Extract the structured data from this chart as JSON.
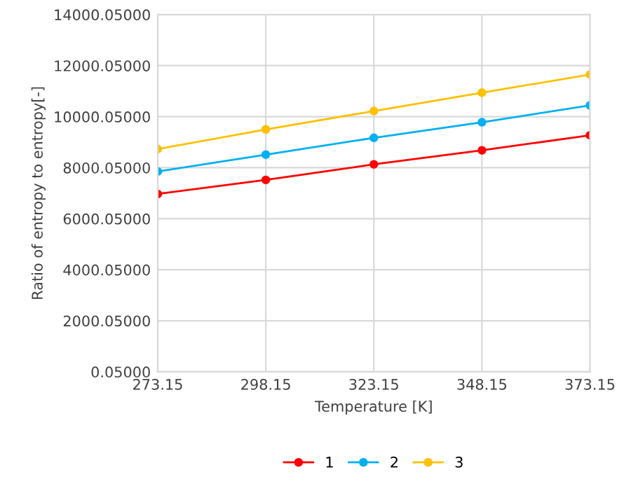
{
  "chart_data": {
    "type": "line",
    "xlabel": "Temperature [K]",
    "ylabel": "Ratio of entropy to entropy[-]",
    "x": [
      273.15,
      298.15,
      323.15,
      348.15,
      373.15
    ],
    "series": [
      {
        "name": "1",
        "color": "#ff0000",
        "values": [
          6970,
          7520,
          8130,
          8680,
          9270
        ]
      },
      {
        "name": "2",
        "color": "#00b0f0",
        "values": [
          7850,
          8510,
          9170,
          9780,
          10440
        ]
      },
      {
        "name": "3",
        "color": "#ffc000",
        "values": [
          8730,
          9500,
          10220,
          10940,
          11650
        ]
      }
    ],
    "xlim": [
      273.15,
      373.15
    ],
    "xticks": [
      273.15,
      298.15,
      323.15,
      348.15,
      373.15
    ],
    "ylim": [
      0.05,
      14000.05
    ],
    "yticks": [
      {
        "value": 0.05,
        "label": "0.05000"
      },
      {
        "value": 2000.05,
        "label": "2000.05000"
      },
      {
        "value": 4000.05,
        "label": "4000.05000"
      },
      {
        "value": 6000.05,
        "label": "6000.05000"
      },
      {
        "value": 8000.05,
        "label": "8000.05000"
      },
      {
        "value": 10000.05,
        "label": "10000.05000"
      },
      {
        "value": 12000.05,
        "label": "12000.05000"
      },
      {
        "value": 14000.05,
        "label": "14000.05000"
      }
    ],
    "grid": true,
    "legend": "bottom",
    "marker": "circle",
    "line_style": "solid"
  }
}
